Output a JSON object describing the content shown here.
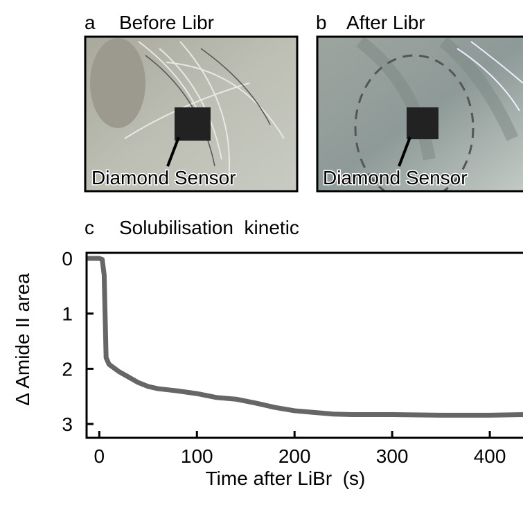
{
  "panels": [
    {
      "letter": "a",
      "title": "Before Libr",
      "label": "Diamond Sensor"
    },
    {
      "letter": "b",
      "title": "After Libr",
      "label": "Diamond Sensor"
    }
  ],
  "chart_data": {
    "type": "line",
    "panel_label": "c",
    "title": "Solubilisation  kinetic",
    "x_label": "Time after LiBr  (s)",
    "y_label": "Δ Amide II area",
    "x": [
      -12,
      0,
      3,
      5,
      7,
      10,
      20,
      30,
      40,
      50,
      60,
      80,
      100,
      120,
      140,
      160,
      180,
      200,
      220,
      240,
      260,
      300,
      350,
      400,
      434
    ],
    "series": [
      {
        "name": "Δ Amide II area",
        "color": "#666666",
        "values": [
          0,
          0,
          0.02,
          0.3,
          1.8,
          1.92,
          2.05,
          2.15,
          2.25,
          2.32,
          2.36,
          2.4,
          2.45,
          2.52,
          2.55,
          2.62,
          2.7,
          2.76,
          2.79,
          2.82,
          2.83,
          2.83,
          2.84,
          2.84,
          2.83
        ]
      }
    ],
    "xlim": [
      -13,
      434
    ],
    "xticks": [
      0,
      100,
      200,
      300,
      400
    ],
    "ylim": [
      -0.1,
      3.25
    ],
    "yticks": [
      0,
      1,
      2,
      3
    ],
    "y_inverted": true
  }
}
